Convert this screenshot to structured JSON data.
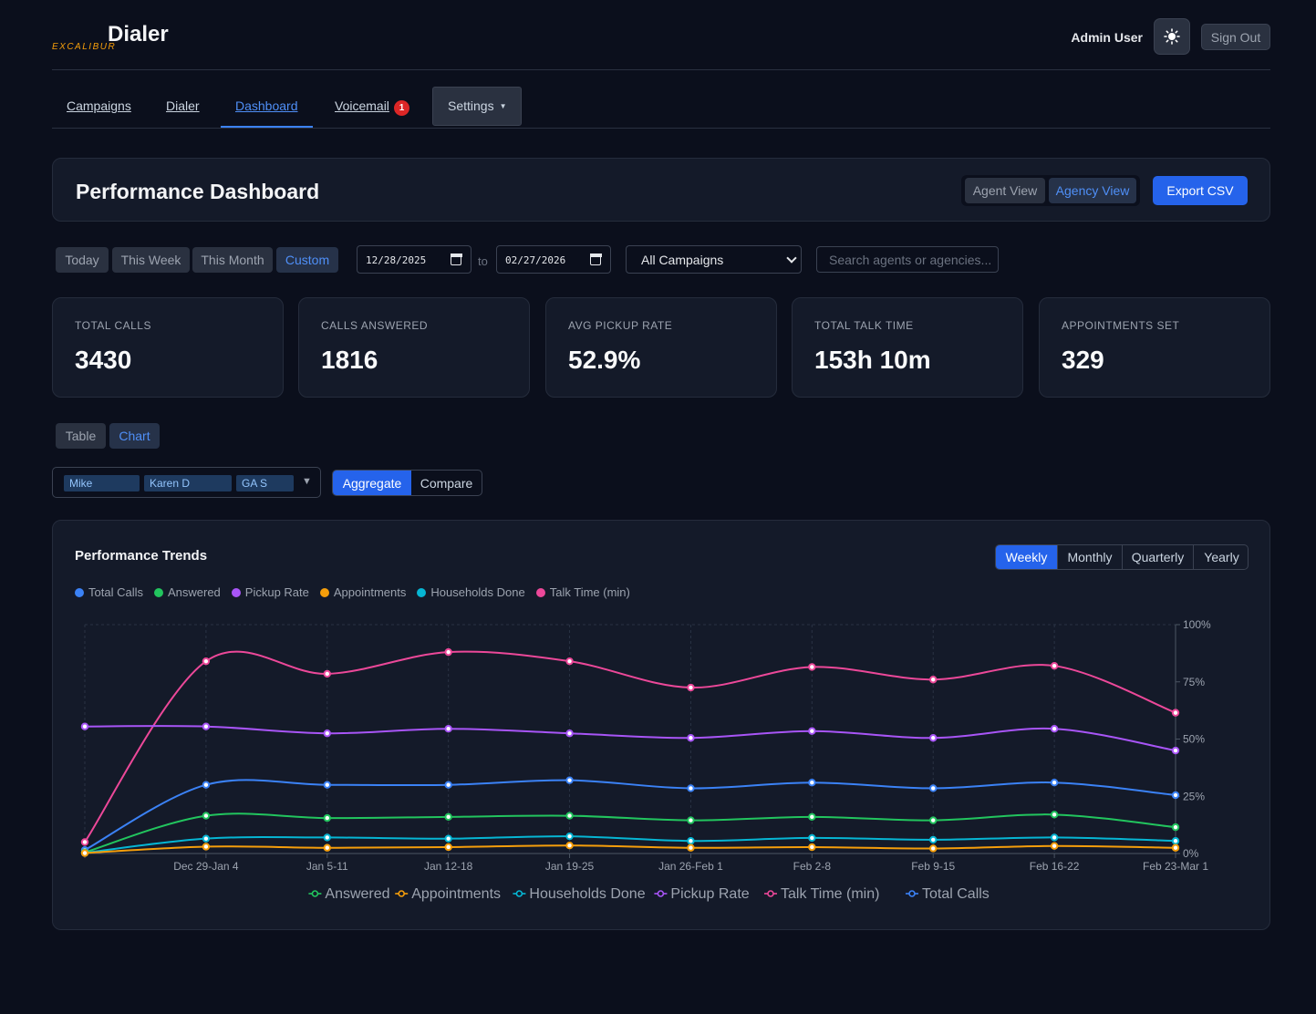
{
  "header": {
    "app_title": "Dialer",
    "brand": "EXCALIBUR",
    "user": "Admin User",
    "sign_out": "Sign Out"
  },
  "nav": {
    "campaigns": "Campaigns",
    "dialer": "Dialer",
    "dashboard": "Dashboard",
    "voicemail": "Voicemail",
    "voicemail_badge": "1",
    "settings": "Settings"
  },
  "title_panel": {
    "title": "Performance Dashboard",
    "agent_view": "Agent View",
    "agency_view": "Agency View",
    "export": "Export CSV"
  },
  "filters": {
    "ranges": [
      "Today",
      "This Week",
      "This Month",
      "Custom"
    ],
    "active_range": "Custom",
    "date_from": "12/28/2025",
    "date_to": "02/27/2026",
    "to_label": "to",
    "campaign": "All Campaigns",
    "search_placeholder": "Search agents or agencies..."
  },
  "stats": [
    {
      "label": "TOTAL CALLS",
      "value": "3430"
    },
    {
      "label": "CALLS ANSWERED",
      "value": "1816"
    },
    {
      "label": "AVG PICKUP RATE",
      "value": "52.9%"
    },
    {
      "label": "TOTAL TALK TIME",
      "value": "153h 10m"
    },
    {
      "label": "APPOINTMENTS SET",
      "value": "329"
    }
  ],
  "view_mode": {
    "table": "Table",
    "chart": "Chart",
    "active": "Chart"
  },
  "agents": [
    "Mike",
    "Karen D",
    "GA S"
  ],
  "mode": {
    "aggregate": "Aggregate",
    "compare": "Compare",
    "active": "Aggregate"
  },
  "chart_panel": {
    "title": "Performance Trends",
    "periods": [
      "Weekly",
      "Monthly",
      "Quarterly",
      "Yearly"
    ],
    "active_period": "Weekly",
    "legend_top": [
      {
        "name": "Total Calls",
        "color": "#3b82f6"
      },
      {
        "name": "Answered",
        "color": "#22c55e"
      },
      {
        "name": "Pickup Rate",
        "color": "#a855f7"
      },
      {
        "name": "Appointments",
        "color": "#f59e0b"
      },
      {
        "name": "Households Done",
        "color": "#06b6d4"
      },
      {
        "name": "Talk Time (min)",
        "color": "#ec4899"
      }
    ],
    "legend_bottom": [
      {
        "name": "Answered",
        "color": "#22c55e"
      },
      {
        "name": "Appointments",
        "color": "#f59e0b"
      },
      {
        "name": "Households Done",
        "color": "#06b6d4"
      },
      {
        "name": "Pickup Rate",
        "color": "#a855f7"
      },
      {
        "name": "Talk Time (min)",
        "color": "#ec4899"
      },
      {
        "name": "Total Calls",
        "color": "#3b82f6"
      }
    ]
  },
  "chart_data": {
    "type": "line",
    "x": [
      "",
      "Dec 29-Jan 4",
      "Jan 5-11",
      "Jan 12-18",
      "Jan 19-25",
      "Jan 26-Feb 1",
      "Feb 2-8",
      "Feb 9-15",
      "Feb 16-22",
      "Feb 23-Mar 1"
    ],
    "y_ticks": [
      "0%",
      "25%",
      "50%",
      "75%",
      "100%"
    ],
    "ylim": [
      0,
      100
    ],
    "grid": true,
    "series": [
      {
        "name": "Talk Time (min)",
        "color": "#ec4899",
        "values": [
          5,
          84,
          78.5,
          88,
          84,
          72.5,
          81.5,
          76,
          82,
          61.5
        ]
      },
      {
        "name": "Pickup Rate",
        "color": "#a855f7",
        "values": [
          55.5,
          55.5,
          52.5,
          54.5,
          52.5,
          50.5,
          53.5,
          50.5,
          54.5,
          45
        ]
      },
      {
        "name": "Total Calls",
        "color": "#3b82f6",
        "values": [
          1.5,
          30,
          30,
          30,
          32,
          28.5,
          31,
          28.5,
          31,
          25.5
        ]
      },
      {
        "name": "Answered",
        "color": "#22c55e",
        "values": [
          0.5,
          16.5,
          15.5,
          16,
          16.5,
          14.5,
          16,
          14.5,
          17,
          11.5
        ]
      },
      {
        "name": "Households Done",
        "color": "#06b6d4",
        "values": [
          0.3,
          6.5,
          7,
          6.5,
          7.5,
          5.5,
          6.8,
          6,
          7,
          5.5
        ]
      },
      {
        "name": "Appointments",
        "color": "#f59e0b",
        "values": [
          0.2,
          3,
          2.5,
          2.8,
          3.5,
          2.5,
          2.8,
          2.2,
          3.3,
          2.5
        ]
      }
    ]
  }
}
